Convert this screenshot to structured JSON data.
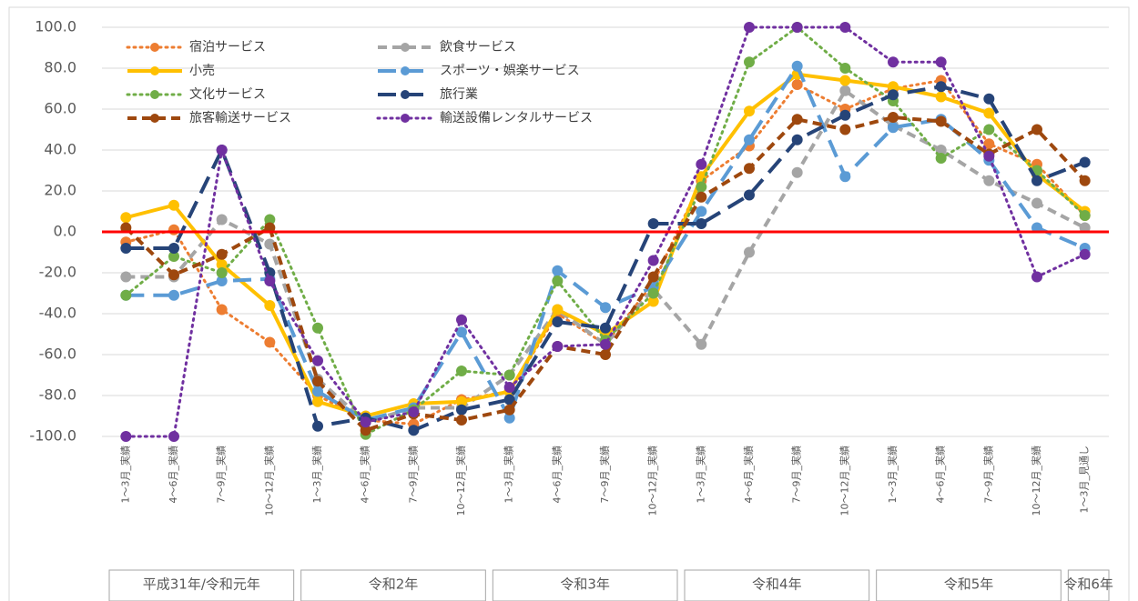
{
  "chart_data": {
    "type": "line",
    "categories": [
      "1～3月_実績",
      "4～6月_実績",
      "7～9月_実績",
      "10～12月_実績",
      "1～3月_実績",
      "4～6月_実績",
      "7～9月_実績",
      "10～12月_実績",
      "1～3月_実績",
      "4～6月_実績",
      "7～9月_実績",
      "10～12月_実績",
      "1～3月_実績",
      "4～6月_実績",
      "7～9月_実績",
      "10～12月_実績",
      "1～3月_実績",
      "4～6月_実績",
      "7～9月_実績",
      "10～12月_実績",
      "1～3月_見通し"
    ],
    "groups": [
      {
        "label": "平成31年/令和元年",
        "count": 4
      },
      {
        "label": "令和2年",
        "count": 4
      },
      {
        "label": "令和3年",
        "count": 4
      },
      {
        "label": "令和4年",
        "count": 4
      },
      {
        "label": "令和5年",
        "count": 4
      },
      {
        "label": "令和6年",
        "count": 1
      }
    ],
    "series": [
      {
        "name": "宿泊サービス",
        "color": "#ed7d31",
        "dash": "dot",
        "values": [
          -5,
          1,
          -38,
          -54,
          -80,
          -92,
          -94,
          -82,
          -78,
          -40,
          -55,
          -25,
          25,
          42,
          72,
          60,
          70,
          74,
          43,
          33,
          8
        ]
      },
      {
        "name": "飲食サービス",
        "color": "#a5a5a5",
        "dash": "dash",
        "values": [
          -22,
          -22,
          6,
          -6,
          -72,
          -93,
          -86,
          -86,
          -70,
          -38,
          -55,
          -28,
          -55,
          -10,
          29,
          69,
          52,
          40,
          25,
          14,
          2
        ]
      },
      {
        "name": "小売",
        "color": "#ffc000",
        "dash": "solid",
        "values": [
          7,
          13,
          -16,
          -36,
          -83,
          -90,
          -84,
          -83,
          -78,
          -38,
          -50,
          -34,
          27,
          59,
          77,
          74,
          71,
          66,
          58,
          28,
          10
        ]
      },
      {
        "name": "スポーツ・娯楽サービス",
        "color": "#5b9bd5",
        "dash": "longdash",
        "values": [
          -31,
          -31,
          -24,
          -23,
          -78,
          -92,
          -86,
          -49,
          -91,
          -19,
          -37,
          -27,
          10,
          45,
          81,
          27,
          51,
          55,
          35,
          2,
          -8
        ]
      },
      {
        "name": "文化サービス",
        "color": "#70ad47",
        "dash": "dot",
        "values": [
          -31,
          -12,
          -20,
          6,
          -47,
          -99,
          -87,
          -68,
          -70,
          -24,
          -53,
          -30,
          22,
          83,
          100,
          80,
          64,
          36,
          50,
          30,
          8
        ]
      },
      {
        "name": "旅行業",
        "color": "#264478",
        "dash": "longdash",
        "values": [
          -8,
          -8,
          40,
          -20,
          -95,
          -91,
          -97,
          -87,
          -82,
          -44,
          -47,
          4,
          4,
          18,
          45,
          57,
          67,
          71,
          65,
          25,
          34
        ]
      },
      {
        "name": "旅客輸送サービス",
        "color": "#9e480e",
        "dash": "dash",
        "values": [
          2,
          -21,
          -11,
          2,
          -73,
          -97,
          -89,
          -92,
          -87,
          -56,
          -60,
          -22,
          17,
          31,
          55,
          50,
          56,
          54,
          38,
          50,
          25
        ]
      },
      {
        "name": "輸送設備レンタルサービス",
        "color": "#7030a0",
        "dash": "dot",
        "values": [
          -100,
          -100,
          40,
          -24,
          -63,
          -93,
          -88,
          -43,
          -76,
          -56,
          -55,
          -14,
          33,
          100,
          100,
          100,
          83,
          83,
          37,
          -22,
          -11
        ]
      }
    ],
    "ylim": [
      -100,
      100
    ],
    "yticks": [
      {
        "value": -100,
        "label": "-100.0"
      },
      {
        "value": -80,
        "label": "-80.0"
      },
      {
        "value": -60,
        "label": "-60.0"
      },
      {
        "value": -40,
        "label": "-40.0"
      },
      {
        "value": -20,
        "label": "-20.0"
      },
      {
        "value": 0,
        "label": "0.0"
      },
      {
        "value": 20,
        "label": "20.0"
      },
      {
        "value": 40,
        "label": "40.0"
      },
      {
        "value": 60,
        "label": "60.0"
      },
      {
        "value": 80,
        "label": "80.0"
      },
      {
        "value": 100,
        "label": "100.0"
      }
    ],
    "grid": true,
    "zero_line_color": "#ff0000",
    "legend": "upper left"
  }
}
